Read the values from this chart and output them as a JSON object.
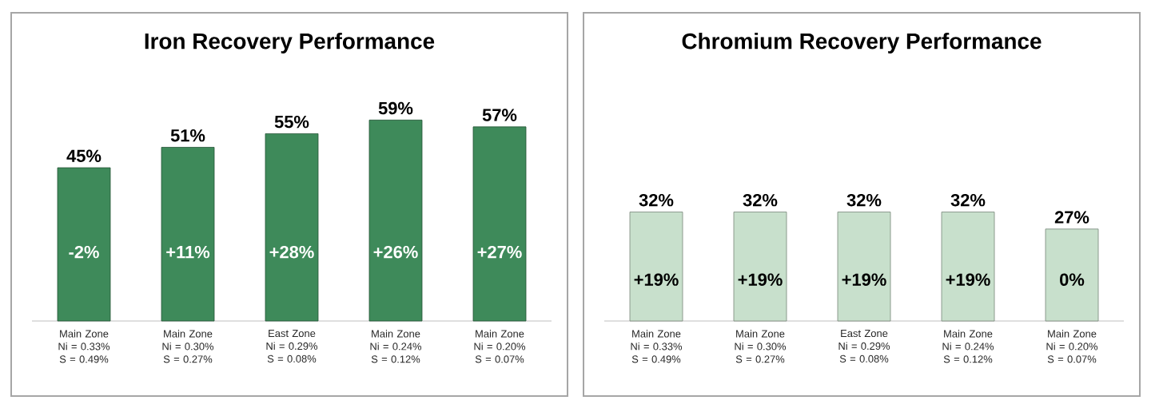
{
  "chart_data": [
    {
      "type": "bar",
      "title": "Iron Recovery Performance",
      "categories": [
        "Main Zone Ni = 0.33% S = 0.49%",
        "Main Zone Ni = 0.30% S = 0.27%",
        "East Zone Ni = 0.29% S = 0.08%",
        "Main Zone Ni = 0.24% S = 0.12%",
        "Main Zone Ni = 0.20% S = 0.07%"
      ],
      "values": [
        45,
        51,
        55,
        59,
        57
      ],
      "color": "#3e8a5a",
      "value_labels": [
        "45%",
        "51%",
        "55%",
        "59%",
        "57%"
      ],
      "annotations": [
        "-2%",
        "+11%",
        "+28%",
        "+26%",
        "+27%"
      ]
    },
    {
      "type": "bar",
      "title": "Chromium Recovery Performance",
      "categories": [
        "Main Zone Ni = 0.33% S = 0.49%",
        "Main Zone Ni = 0.30% S = 0.27%",
        "East Zone Ni = 0.29% S = 0.08%",
        "Main Zone Ni = 0.24% S = 0.12%",
        "Main Zone Ni = 0.20% S = 0.07%"
      ],
      "values": [
        32,
        32,
        32,
        32,
        27
      ],
      "color": "#c8e0cc",
      "value_labels": [
        "32%",
        "32%",
        "32%",
        "32%",
        "27%"
      ],
      "annotations": [
        "+19%",
        "+19%",
        "+19%",
        "+19%",
        "0%"
      ]
    }
  ]
}
